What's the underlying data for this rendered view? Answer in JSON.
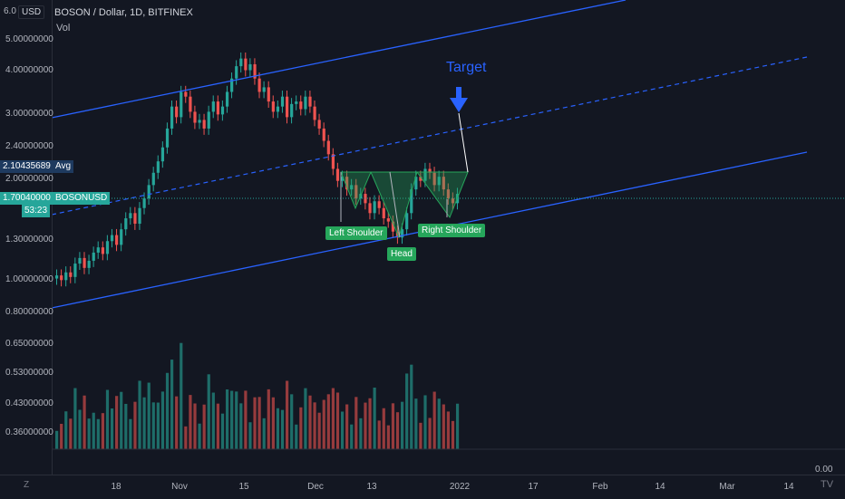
{
  "header": {
    "symbol_title": "BOSON / Dollar, 1D, BITFINEX",
    "volume_label": "Vol"
  },
  "price_axis": {
    "currency_badge": "USD",
    "top_partial": "6.0",
    "ticks": [
      "5.00000000",
      "4.00000000",
      "3.00000000",
      "2.40000000",
      "2.00000000",
      "1.30000000",
      "1.00000000",
      "0.80000000",
      "0.65000000",
      "0.53000000",
      "0.43000000",
      "0.36000000"
    ],
    "avg_value": "2.10435689",
    "avg_tag": "Avg",
    "last_price": "1.70040000",
    "countdown": "53:23",
    "symbol_tag": "BOSONUSD",
    "volume_zero": "0.00"
  },
  "time_axis": {
    "ticks": [
      "18",
      "Nov",
      "15",
      "Dec",
      "13",
      "2022",
      "17",
      "Feb",
      "14",
      "Mar",
      "14"
    ]
  },
  "annotations": {
    "target": "Target",
    "left_shoulder": "Left Shoulder",
    "head": "Head",
    "right_shoulder": "Right Shoulder"
  },
  "controls": {
    "zoom_button": "Z",
    "logo": "TV"
  },
  "colors": {
    "up": "#26a69a",
    "down": "#ef5350",
    "channel": "#2962ff",
    "pattern": "#26a65b",
    "background": "#131722"
  },
  "chart_data": {
    "type": "candlestick",
    "title": "BOSON / Dollar, 1D, BITFINEX",
    "last_price": 1.7004,
    "average": 2.10435689,
    "y_scale": "log",
    "x_ticks": [
      "18",
      "Nov",
      "15",
      "Dec",
      "13",
      "2022",
      "17",
      "Feb",
      "14",
      "Mar",
      "14"
    ],
    "y_ticks": [
      5.0,
      4.0,
      3.0,
      2.4,
      2.0,
      1.3,
      1.0,
      0.8,
      0.65,
      0.53,
      0.43,
      0.36
    ],
    "close_series": [
      1.0,
      0.97,
      1.02,
      0.99,
      1.08,
      1.12,
      1.05,
      1.1,
      1.16,
      1.2,
      1.15,
      1.25,
      1.3,
      1.22,
      1.35,
      1.45,
      1.5,
      1.4,
      1.55,
      1.65,
      1.8,
      1.95,
      2.1,
      2.3,
      2.6,
      3.0,
      2.8,
      3.3,
      3.2,
      2.9,
      2.7,
      2.75,
      2.6,
      2.9,
      3.1,
      2.85,
      3.0,
      3.3,
      3.6,
      3.9,
      4.1,
      3.8,
      3.95,
      3.6,
      3.3,
      3.4,
      3.1,
      2.9,
      3.0,
      3.2,
      2.8,
      3.05,
      3.1,
      2.95,
      3.2,
      3.0,
      2.75,
      2.6,
      2.4,
      2.2,
      2.0,
      1.85,
      1.9,
      1.75,
      1.8,
      1.65,
      1.7,
      1.6,
      1.5,
      1.62,
      1.55,
      1.45,
      1.42,
      1.33,
      1.28,
      1.35,
      1.5,
      1.75,
      1.9,
      1.85,
      2.0,
      1.95,
      1.8,
      1.9,
      1.75,
      1.65,
      1.6,
      1.7
    ]
  }
}
